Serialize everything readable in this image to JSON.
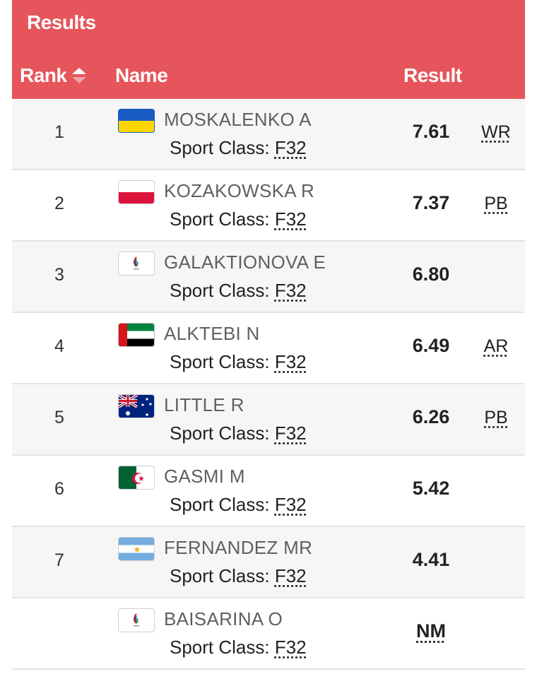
{
  "header": {
    "title": "Results",
    "columns": {
      "rank": "Rank",
      "name": "Name",
      "result": "Result"
    }
  },
  "rows": [
    {
      "rank": "1",
      "name": "MOSKALENKO A",
      "flag": "ukraine-flag-icon",
      "class_label": "Sport Class:",
      "class_code": "F32",
      "result": "7.61",
      "record": "WR"
    },
    {
      "rank": "2",
      "name": "KOZAKOWSKA R",
      "flag": "poland-flag-icon",
      "class_label": "Sport Class:",
      "class_code": "F32",
      "result": "7.37",
      "record": "PB"
    },
    {
      "rank": "3",
      "name": "GALAKTIONOVA E",
      "flag": "npa-flag-icon",
      "class_label": "Sport Class:",
      "class_code": "F32",
      "result": "6.80",
      "record": ""
    },
    {
      "rank": "4",
      "name": "ALKTEBI N",
      "flag": "uae-flag-icon",
      "class_label": "Sport Class:",
      "class_code": "F32",
      "result": "6.49",
      "record": "AR"
    },
    {
      "rank": "5",
      "name": "LITTLE R",
      "flag": "australia-flag-icon",
      "class_label": "Sport Class:",
      "class_code": "F32",
      "result": "6.26",
      "record": "PB"
    },
    {
      "rank": "6",
      "name": "GASMI M",
      "flag": "algeria-flag-icon",
      "class_label": "Sport Class:",
      "class_code": "F32",
      "result": "5.42",
      "record": ""
    },
    {
      "rank": "7",
      "name": "FERNANDEZ MR",
      "flag": "argentina-flag-icon",
      "class_label": "Sport Class:",
      "class_code": "F32",
      "result": "4.41",
      "record": ""
    },
    {
      "rank": "",
      "name": "BAISARINA O",
      "flag": "npa-flag-icon",
      "class_label": "Sport Class:",
      "class_code": "F32",
      "result": "NM",
      "record": ""
    }
  ],
  "colors": {
    "header": "#e6555b",
    "row_alt": "#f6f6f6"
  }
}
